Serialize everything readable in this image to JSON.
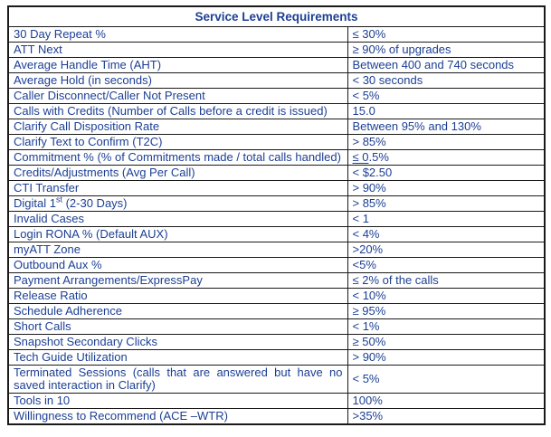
{
  "colors": {
    "text_blue": "#1c3f94",
    "border": "#1a1a1a",
    "background": "#ffffff"
  },
  "table": {
    "title": "Service Level Requirements",
    "rows": [
      {
        "metric": "30 Day Repeat %",
        "value": "≤ 30%"
      },
      {
        "metric": "ATT Next",
        "value": "≥ 90% of upgrades"
      },
      {
        "metric": "Average Handle Time (AHT)",
        "value": "Between 400 and 740 seconds"
      },
      {
        "metric": "Average Hold (in seconds)",
        "value": "< 30 seconds"
      },
      {
        "metric": "Caller Disconnect/Caller Not Present",
        "value": "< 5%"
      },
      {
        "metric": "Calls with Credits (Number of Calls before a credit is issued)",
        "value": "15.0"
      },
      {
        "metric": "Clarify Call Disposition Rate",
        "value": "Between 95% and 130%"
      },
      {
        "metric": "Clarify Text to Confirm (T2C)",
        "value": "> 85%"
      },
      {
        "metric": "Commitment % (% of Commitments made / total calls handled)",
        "justify": true,
        "value_segments": [
          {
            "text": "≤ 0",
            "underline": true
          },
          {
            "text": ".5%"
          }
        ]
      },
      {
        "metric": "Credits/Adjustments (Avg Per Call)",
        "value": "< $2.50"
      },
      {
        "metric": "CTI Transfer",
        "value": "> 90%"
      },
      {
        "metric_segments": [
          {
            "text": "Digital 1"
          },
          {
            "text": "st",
            "sup": true
          },
          {
            "text": " (2-30 Days)"
          }
        ],
        "value": "> 85%"
      },
      {
        "metric": "Invalid Cases",
        "value": "< 1"
      },
      {
        "metric": "Login RONA % (Default AUX)",
        "value": "< 4%"
      },
      {
        "metric": "myATT Zone",
        "value": ">20%"
      },
      {
        "metric": "Outbound Aux %",
        "value": "<5%"
      },
      {
        "metric": "Payment Arrangements/ExpressPay",
        "value": "≤ 2% of the calls"
      },
      {
        "metric": "Release Ratio",
        "value": "< 10%"
      },
      {
        "metric": "Schedule Adherence",
        "value": "≥ 95%"
      },
      {
        "metric": "Short Calls",
        "value": "< 1%"
      },
      {
        "metric": "Snapshot Secondary Clicks",
        "value": "≥ 50%"
      },
      {
        "metric": "Tech Guide Utilization",
        "value": "> 90%"
      },
      {
        "metric": "Terminated Sessions (calls that are answered but have no saved interaction in Clarify)",
        "justify": true,
        "value": "< 5%"
      },
      {
        "metric": "Tools in 10",
        "value": "100%"
      },
      {
        "metric": "Willingness to Recommend (ACE –WTR)",
        "value": ">35%"
      }
    ]
  }
}
